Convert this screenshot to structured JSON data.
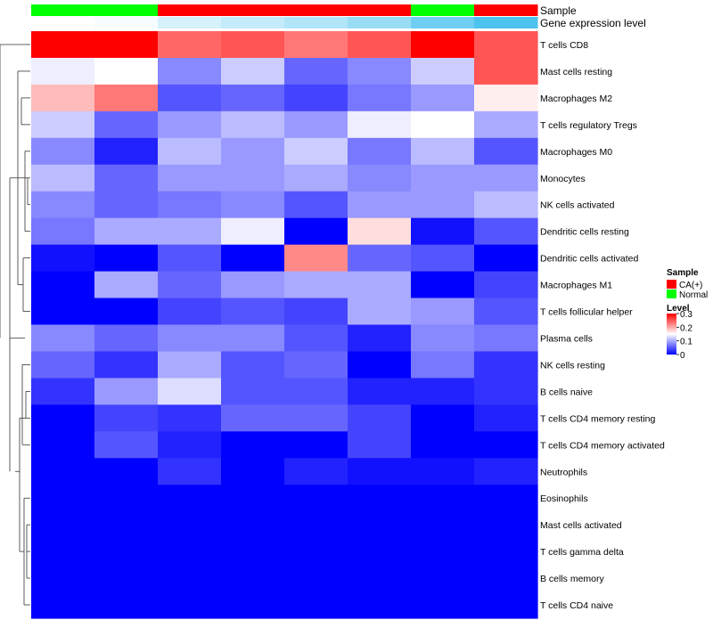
{
  "chart_data": {
    "type": "heatmap",
    "annotation_rows": [
      {
        "label": "Sample",
        "values": [
          "Normal",
          "Normal",
          "CA(+)",
          "CA(+)",
          "CA(+)",
          "CA(+)",
          "Normal",
          "CA(+)"
        ]
      },
      {
        "label": "Gene expression level",
        "values": [
          0.02,
          0.03,
          0.07,
          0.09,
          0.11,
          0.14,
          0.19,
          0.23
        ]
      }
    ],
    "rows": [
      "T cells CD8",
      "Mast cells resting",
      "Macrophages M2",
      "T cells regulatory  Tregs",
      "Macrophages M0",
      "Monocytes",
      "NK cells activated",
      "Dendritic cells resting",
      "Dendritic cells activated",
      "Macrophages M1",
      "T cells follicular helper",
      "Plasma cells",
      "NK cells resting",
      "B cells naive",
      "T cells CD4 memory resting",
      "T cells CD4 memory activated",
      "Neutrophils",
      "Eosinophils",
      "Mast cells activated",
      "T cells gamma delta",
      "B cells memory",
      "T cells CD4 naive"
    ],
    "values": [
      [
        0.3,
        0.3,
        0.24,
        0.25,
        0.23,
        0.25,
        0.3,
        0.25
      ],
      [
        0.14,
        0.15,
        0.08,
        0.12,
        0.06,
        0.08,
        0.12,
        0.25
      ],
      [
        0.19,
        0.23,
        0.05,
        0.06,
        0.04,
        0.07,
        0.09,
        0.16
      ],
      [
        0.12,
        0.06,
        0.09,
        0.11,
        0.09,
        0.14,
        0.15,
        0.1
      ],
      [
        0.08,
        0.02,
        0.11,
        0.09,
        0.12,
        0.07,
        0.11,
        0.05
      ],
      [
        0.11,
        0.06,
        0.09,
        0.09,
        0.1,
        0.08,
        0.09,
        0.09
      ],
      [
        0.08,
        0.06,
        0.07,
        0.08,
        0.05,
        0.09,
        0.09,
        0.11
      ],
      [
        0.07,
        0.1,
        0.1,
        0.14,
        0.0,
        0.17,
        0.01,
        0.05
      ],
      [
        0.01,
        0.0,
        0.05,
        0.0,
        0.22,
        0.06,
        0.05,
        0.0
      ],
      [
        0.0,
        0.1,
        0.06,
        0.09,
        0.1,
        0.1,
        0.0,
        0.04
      ],
      [
        0.0,
        0.0,
        0.04,
        0.05,
        0.04,
        0.1,
        0.09,
        0.05
      ],
      [
        0.08,
        0.06,
        0.08,
        0.08,
        0.05,
        0.02,
        0.08,
        0.07
      ],
      [
        0.06,
        0.03,
        0.1,
        0.05,
        0.06,
        0.0,
        0.07,
        0.03
      ],
      [
        0.03,
        0.09,
        0.13,
        0.05,
        0.05,
        0.02,
        0.02,
        0.03
      ],
      [
        0.0,
        0.04,
        0.03,
        0.06,
        0.06,
        0.04,
        0.0,
        0.02
      ],
      [
        0.0,
        0.05,
        0.02,
        0.0,
        0.0,
        0.04,
        0.0,
        0.0
      ],
      [
        0.0,
        0.0,
        0.03,
        0.0,
        0.02,
        0.01,
        0.01,
        0.02
      ],
      [
        0.0,
        0.0,
        0.0,
        0.0,
        0.0,
        0.0,
        0.0,
        0.0
      ],
      [
        0.0,
        0.0,
        0.0,
        0.0,
        0.0,
        0.0,
        0.0,
        0.0
      ],
      [
        0.0,
        0.0,
        0.0,
        0.0,
        0.0,
        0.0,
        0.0,
        0.0
      ],
      [
        0.0,
        0.0,
        0.0,
        0.0,
        0.0,
        0.0,
        0.0,
        0.0
      ],
      [
        0.0,
        0.0,
        0.0,
        0.0,
        0.0,
        0.0,
        0.0,
        0.0
      ]
    ],
    "color_scale": {
      "low": "#0000ff",
      "mid": "#ffffff",
      "high": "#ff0000",
      "range": [
        0,
        0.3
      ],
      "midpoint": 0.15
    },
    "expression_scale": {
      "low": "#ffffff",
      "high": "#4dc3ee"
    },
    "sample_colors": {
      "CA(+)": "#ff0000",
      "Normal": "#00ff00"
    },
    "dendrogram": "rows",
    "legends": {
      "sample": {
        "title": "Sample",
        "items": [
          "CA(+)",
          "Normal"
        ]
      },
      "level": {
        "title": "Level",
        "ticks": [
          {
            "value": 0.3,
            "label": "0.3"
          },
          {
            "value": 0.2,
            "label": "0.2"
          },
          {
            "value": 0.1,
            "label": "0.1"
          },
          {
            "value": 0,
            "label": "0"
          }
        ]
      }
    }
  }
}
